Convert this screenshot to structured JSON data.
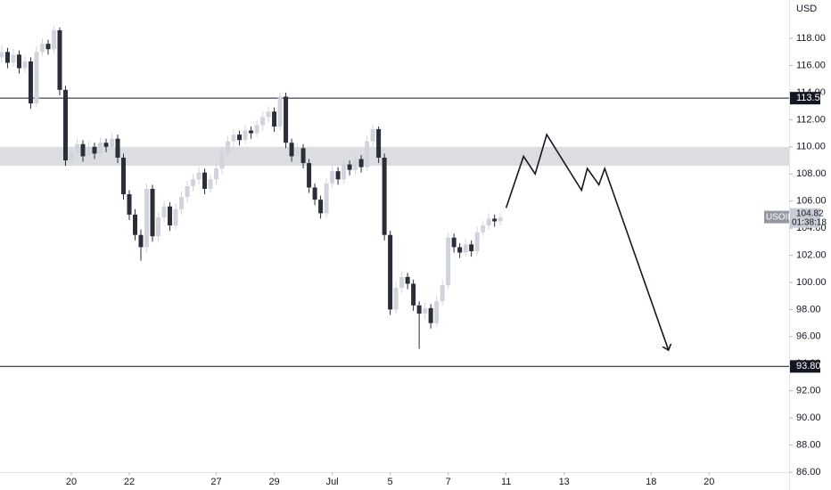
{
  "chart_data": {
    "type": "candlestick",
    "currency": "USD",
    "up_color": "#d1d4dc",
    "down_color": "#2a2e39",
    "ylim": [
      86,
      120.83
    ],
    "xlim": [
      -0.3,
      135.8
    ],
    "yticks": [
      {
        "value": 86,
        "label": "86.00"
      },
      {
        "value": 88,
        "label": "88.00"
      },
      {
        "value": 90,
        "label": "90.00"
      },
      {
        "value": 92,
        "label": "92.00"
      },
      {
        "value": 94,
        "label": "94.00"
      },
      {
        "value": 96,
        "label": "96.00"
      },
      {
        "value": 98,
        "label": "98.00"
      },
      {
        "value": 100,
        "label": "100.00"
      },
      {
        "value": 102,
        "label": "102.00"
      },
      {
        "value": 104,
        "label": "104.00"
      },
      {
        "value": 106,
        "label": "106.00"
      },
      {
        "value": 108,
        "label": "108.00"
      },
      {
        "value": 110,
        "label": "110.00"
      },
      {
        "value": 112,
        "label": "112.00"
      },
      {
        "value": 114,
        "label": "114.00"
      },
      {
        "value": 116,
        "label": "116.00"
      },
      {
        "value": 118,
        "label": "118.00"
      }
    ],
    "xticks": [
      {
        "value": 12,
        "label": "20"
      },
      {
        "value": 22,
        "label": "22"
      },
      {
        "value": 37,
        "label": "27"
      },
      {
        "value": 47,
        "label": "29"
      },
      {
        "value": 57,
        "label": "Jul"
      },
      {
        "value": 67,
        "label": "5"
      },
      {
        "value": 77,
        "label": "7"
      },
      {
        "value": 87,
        "label": "11"
      },
      {
        "value": 97,
        "label": "13"
      },
      {
        "value": 112,
        "label": "18"
      },
      {
        "value": 122,
        "label": "20"
      }
    ],
    "open": [
      116.6,
      117.0,
      116.2,
      116.8,
      115.8,
      116.3,
      113.2,
      117.0,
      117.6,
      117.2,
      118.6,
      114.2,
      109.0,
      109.6,
      110.2,
      109.3,
      110.0,
      109.5,
      110.3,
      110.0,
      110.6,
      109.2,
      106.5,
      105.0,
      103.5,
      102.6,
      106.9,
      103.4,
      104.8,
      105.6,
      104.2,
      105.4,
      106.3,
      107.1,
      107.6,
      108.1,
      106.9,
      107.6,
      108.4,
      109.6,
      110.4,
      110.9,
      110.5,
      111.2,
      111.0,
      111.6,
      112.2,
      112.6,
      111.5,
      113.7,
      110.3,
      109.3,
      109.9,
      108.8,
      107.0,
      106.1,
      105.1,
      107.3,
      108.2,
      107.6,
      108.7,
      108.3,
      109.1,
      108.5,
      110.4,
      111.3,
      109.2,
      103.5,
      98.0,
      99.6,
      100.4,
      99.9,
      98.3,
      97.7,
      98.1,
      97.0,
      98.6,
      99.8,
      103.3,
      102.6,
      102.2,
      102.8,
      102.3,
      103.7,
      104.2,
      104.7,
      104.5
    ],
    "high": [
      117.5,
      117.3,
      117.2,
      117.1,
      116.7,
      116.6,
      117.4,
      118.0,
      117.9,
      118.9,
      118.8,
      114.5,
      110.0,
      110.6,
      110.5,
      110.4,
      110.3,
      110.7,
      110.6,
      111.0,
      110.9,
      109.5,
      106.8,
      105.4,
      103.9,
      107.3,
      107.2,
      105.2,
      106.0,
      105.9,
      105.8,
      106.7,
      107.5,
      108.0,
      108.5,
      108.4,
      108.0,
      108.8,
      110.0,
      110.8,
      111.3,
      111.2,
      111.6,
      111.5,
      112.0,
      112.6,
      113.0,
      112.9,
      114.0,
      114.0,
      110.6,
      110.3,
      110.2,
      109.1,
      107.3,
      106.4,
      107.7,
      108.6,
      108.5,
      109.1,
      109.0,
      109.5,
      109.4,
      110.8,
      111.6,
      111.5,
      109.5,
      103.8,
      100.0,
      100.8,
      100.7,
      100.2,
      98.6,
      98.5,
      98.4,
      99.0,
      100.2,
      103.7,
      103.6,
      102.9,
      103.2,
      103.1,
      104.1,
      104.6,
      105.1,
      105.0,
      105.1
    ],
    "low": [
      116.2,
      115.8,
      115.9,
      115.4,
      115.5,
      112.8,
      112.9,
      116.7,
      116.8,
      116.9,
      113.8,
      108.6,
      108.6,
      109.2,
      108.9,
      109.0,
      109.1,
      109.2,
      109.6,
      109.7,
      108.8,
      106.1,
      104.6,
      103.1,
      101.6,
      102.2,
      103.0,
      103.0,
      104.4,
      103.8,
      103.9,
      105.0,
      105.9,
      106.7,
      107.2,
      106.5,
      106.6,
      107.2,
      108.0,
      109.2,
      110.0,
      110.1,
      110.2,
      110.6,
      110.7,
      111.2,
      111.8,
      111.1,
      111.2,
      109.9,
      108.9,
      109.0,
      108.4,
      106.6,
      105.7,
      104.7,
      104.8,
      107.0,
      107.2,
      107.3,
      107.9,
      108.0,
      108.1,
      108.2,
      110.0,
      108.8,
      103.1,
      97.6,
      97.7,
      99.2,
      99.5,
      97.9,
      95.1,
      97.3,
      96.6,
      96.7,
      98.3,
      99.5,
      102.2,
      101.8,
      101.9,
      101.9,
      102.0,
      103.4,
      103.9,
      104.1,
      104.2
    ],
    "close": [
      117.0,
      116.2,
      116.8,
      115.8,
      116.3,
      113.2,
      117.0,
      117.6,
      117.2,
      118.6,
      114.2,
      109.0,
      109.6,
      110.2,
      109.3,
      110.0,
      109.5,
      110.3,
      110.0,
      110.6,
      109.2,
      106.5,
      105.0,
      103.5,
      102.6,
      106.9,
      103.4,
      104.8,
      105.6,
      104.2,
      105.4,
      106.3,
      107.1,
      107.6,
      108.1,
      106.9,
      107.6,
      108.4,
      109.6,
      110.4,
      110.9,
      110.5,
      111.2,
      111.0,
      111.6,
      112.2,
      112.6,
      111.5,
      113.7,
      110.3,
      109.3,
      109.9,
      108.8,
      107.0,
      106.1,
      105.1,
      107.3,
      108.2,
      107.6,
      108.7,
      108.3,
      109.1,
      108.5,
      110.4,
      111.3,
      109.2,
      103.5,
      98.0,
      99.6,
      100.4,
      99.9,
      98.3,
      97.7,
      98.1,
      97.0,
      98.6,
      99.8,
      103.3,
      102.6,
      102.2,
      102.8,
      102.3,
      103.7,
      104.2,
      104.7,
      104.5,
      104.8
    ],
    "zone": [
      108.6,
      110.0
    ],
    "levels": [
      {
        "value": 113.59,
        "label": "113.59"
      },
      {
        "value": 93.8,
        "label": "93.80"
      }
    ],
    "projection": {
      "x": [
        87,
        90,
        92,
        94,
        100,
        101,
        103,
        104,
        115
      ],
      "values": [
        105.5,
        109.3,
        108.0,
        110.9,
        106.8,
        108.4,
        107.2,
        108.4,
        95.0
      ]
    },
    "last_price": {
      "symbol": "USOIL",
      "value": 104.82,
      "countdown": "01:38:18"
    }
  }
}
